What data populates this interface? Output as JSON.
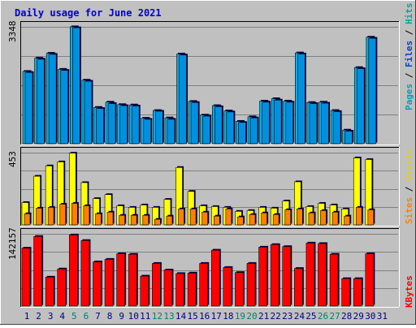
{
  "title": "Daily usage for June 2021",
  "colors": {
    "background": "#c0c0c0",
    "title": "#0000d0",
    "hits": "#00b0e8",
    "files": "#0040e0",
    "pages": "#00a0c0",
    "visits": "#ffff00",
    "sites": "#ff8000",
    "kbytes": "#ff0000",
    "weekend_day": "#00806a",
    "weekday": "#000080"
  },
  "chart_data": [
    {
      "type": "bar",
      "panel": "hits-files-pages",
      "legend_text": [
        "Pages",
        "Files",
        "Hits"
      ],
      "ymax_label": "3348",
      "ylim": [
        0,
        3348
      ],
      "categories": [
        "1",
        "2",
        "3",
        "4",
        "5",
        "6",
        "7",
        "8",
        "9",
        "10",
        "11",
        "12",
        "13",
        "14",
        "15",
        "16",
        "17",
        "18",
        "19",
        "20",
        "21",
        "22",
        "23",
        "24",
        "25",
        "26",
        "27",
        "28",
        "29",
        "30",
        "31"
      ],
      "series": [
        {
          "name": "Hits",
          "values": [
            2070,
            2450,
            2590,
            2130,
            3348,
            1820,
            1040,
            1190,
            1120,
            1110,
            730,
            950,
            740,
            2570,
            1210,
            820,
            1090,
            940,
            640,
            770,
            1220,
            1290,
            1220,
            2600,
            1180,
            1190,
            950,
            390,
            2180,
            3050,
            null
          ]
        },
        {
          "name": "Files",
          "values": [
            2040,
            2420,
            2560,
            2100,
            3320,
            1790,
            1010,
            1150,
            1090,
            1080,
            700,
            930,
            700,
            2540,
            1180,
            790,
            1060,
            910,
            610,
            740,
            1190,
            1250,
            1190,
            2570,
            1150,
            1160,
            920,
            360,
            2150,
            3020,
            null
          ]
        }
      ]
    },
    {
      "type": "bar",
      "panel": "visits-sites",
      "legend_text": [
        "Sites",
        "Visits"
      ],
      "ymax_label": "453",
      "ylim": [
        0,
        453
      ],
      "categories": [
        "1",
        "2",
        "3",
        "4",
        "5",
        "6",
        "7",
        "8",
        "9",
        "10",
        "11",
        "12",
        "13",
        "14",
        "15",
        "16",
        "17",
        "18",
        "19",
        "20",
        "21",
        "22",
        "23",
        "24",
        "25",
        "26",
        "27",
        "28",
        "29",
        "30",
        "31"
      ],
      "series": [
        {
          "name": "Visits",
          "values": [
            140,
            305,
            370,
            395,
            450,
            265,
            165,
            190,
            120,
            110,
            125,
            110,
            160,
            360,
            210,
            120,
            115,
            110,
            85,
            90,
            110,
            105,
            150,
            270,
            115,
            135,
            125,
            100,
            420,
            410,
            null
          ]
        },
        {
          "name": "Sites",
          "values": [
            70,
            105,
            110,
            130,
            135,
            120,
            70,
            80,
            60,
            60,
            60,
            35,
            55,
            100,
            100,
            80,
            55,
            100,
            50,
            65,
            75,
            65,
            95,
            100,
            75,
            90,
            80,
            55,
            110,
            95,
            null
          ]
        }
      ]
    },
    {
      "type": "bar",
      "panel": "kbytes",
      "legend_text": [
        "KBytes"
      ],
      "ymax_label": "142157",
      "ylim": [
        0,
        142157
      ],
      "categories": [
        "1",
        "2",
        "3",
        "4",
        "5",
        "6",
        "7",
        "8",
        "9",
        "10",
        "11",
        "12",
        "13",
        "14",
        "15",
        "16",
        "17",
        "18",
        "19",
        "20",
        "21",
        "22",
        "23",
        "24",
        "25",
        "26",
        "27",
        "28",
        "29",
        "30",
        "31"
      ],
      "series": [
        {
          "name": "KBytes",
          "values": [
            114000,
            137000,
            57000,
            73000,
            140000,
            129000,
            87000,
            92000,
            103000,
            102000,
            59000,
            84000,
            71000,
            64000,
            65000,
            84000,
            110000,
            76000,
            66000,
            84000,
            116000,
            121000,
            117000,
            74000,
            124000,
            123000,
            102000,
            54000,
            54000,
            103000,
            null
          ]
        }
      ]
    }
  ],
  "x_axis": {
    "labels": [
      "1",
      "2",
      "3",
      "4",
      "5",
      "6",
      "7",
      "8",
      "9",
      "10",
      "11",
      "12",
      "13",
      "14",
      "15",
      "16",
      "17",
      "18",
      "19",
      "20",
      "21",
      "22",
      "23",
      "24",
      "25",
      "26",
      "27",
      "28",
      "29",
      "30",
      "31"
    ],
    "weekend": [
      5,
      6,
      12,
      13,
      19,
      20,
      26,
      27
    ]
  }
}
